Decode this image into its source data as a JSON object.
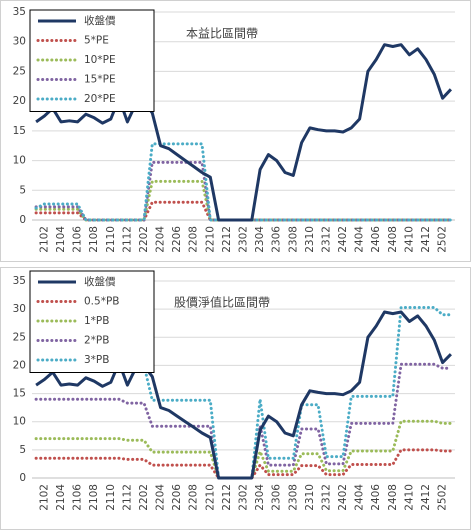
{
  "chart_data": [
    {
      "type": "line",
      "title": "本益比區間帶",
      "categories": [
        null,
        "2102",
        null,
        "2104",
        null,
        "2106",
        null,
        "2108",
        null,
        "2110",
        null,
        "2112",
        null,
        "2202",
        null,
        "2204",
        null,
        "2206",
        null,
        "2208",
        null,
        "2210",
        null,
        "2212",
        null,
        "2302",
        null,
        "2304",
        null,
        "2306",
        null,
        "2308",
        null,
        "2310",
        null,
        "2312",
        null,
        "2402",
        null,
        "2404",
        null,
        "2406",
        null,
        "2408",
        null,
        "2410",
        null,
        "2412",
        null,
        "2502",
        null
      ],
      "series": [
        {
          "name": "收盤價",
          "color": "#1f3864",
          "values": [
            16.5,
            17.5,
            18.8,
            16.5,
            16.7,
            16.5,
            17.8,
            17.2,
            16.3,
            17,
            20.5,
            16.5,
            19.5,
            20,
            18,
            12.5,
            12,
            11,
            10,
            9,
            8,
            7.2,
            0,
            0,
            0,
            0,
            0,
            8.5,
            11,
            10,
            8,
            7.5,
            13,
            15.5,
            15.2,
            15,
            15,
            14.8,
            15.5,
            17,
            25,
            27,
            29.5,
            29.2,
            29.5,
            27.8,
            28.8,
            27,
            24.5,
            20.5,
            22
          ]
        },
        {
          "name": "5*PE",
          "color": "#c0504d",
          "values": [
            1.2,
            1.2,
            1.2,
            1.2,
            1.2,
            1.2,
            0,
            0,
            0,
            0,
            0,
            0,
            0,
            0,
            3,
            3,
            3,
            3,
            3,
            3,
            3,
            0,
            0,
            0,
            0,
            0,
            0,
            0,
            0,
            0,
            0,
            0,
            0,
            0,
            0,
            0,
            0,
            0,
            0,
            0,
            0,
            0,
            0,
            0,
            0,
            0,
            0,
            0,
            0,
            0,
            0
          ]
        },
        {
          "name": "10*PE",
          "color": "#9bbb59",
          "values": [
            1.8,
            1.8,
            1.8,
            1.8,
            1.8,
            1.8,
            0,
            0,
            0,
            0,
            0,
            0,
            0,
            0,
            6.5,
            6.5,
            6.5,
            6.5,
            6.5,
            6.5,
            6.5,
            0,
            0,
            0,
            0,
            0,
            0,
            0,
            0,
            0,
            0,
            0,
            0,
            0,
            0,
            0,
            0,
            0,
            0,
            0,
            0,
            0,
            0,
            0,
            0,
            0,
            0,
            0,
            0,
            0,
            0
          ]
        },
        {
          "name": "15*PE",
          "color": "#8064a2",
          "values": [
            2.2,
            2.2,
            2.2,
            2.2,
            2.2,
            2.2,
            0,
            0,
            0,
            0,
            0,
            0,
            0,
            0,
            9.7,
            9.7,
            9.7,
            9.7,
            9.7,
            9.7,
            9.7,
            0,
            0,
            0,
            0,
            0,
            0,
            0,
            0,
            0,
            0,
            0,
            0,
            0,
            0,
            0,
            0,
            0,
            0,
            0,
            0,
            0,
            0,
            0,
            0,
            0,
            0,
            0,
            0,
            0,
            0
          ]
        },
        {
          "name": "20*PE",
          "color": "#4bacc6",
          "values": [
            2,
            2.7,
            2.7,
            2.7,
            2.7,
            2.7,
            0,
            0,
            0,
            0,
            0,
            0,
            0,
            0,
            12.8,
            12.8,
            12.8,
            12.8,
            12.8,
            12.8,
            12.8,
            0,
            0,
            0,
            0,
            0,
            0,
            0,
            0,
            0,
            0,
            0,
            0,
            0,
            0,
            0,
            0,
            0,
            0,
            0,
            0,
            0,
            0,
            0,
            0,
            0,
            0,
            0,
            0,
            0,
            0
          ]
        }
      ],
      "ylim": [
        0,
        35
      ],
      "yticks": [
        0,
        5,
        10,
        15,
        20,
        25,
        30,
        35
      ],
      "grid": true,
      "legend": "upper left"
    },
    {
      "type": "line",
      "title": "股價淨值比區間帶",
      "categories": [
        null,
        "2102",
        null,
        "2104",
        null,
        "2106",
        null,
        "2108",
        null,
        "2110",
        null,
        "2112",
        null,
        "2202",
        null,
        "2204",
        null,
        "2206",
        null,
        "2208",
        null,
        "2210",
        null,
        "2212",
        null,
        "2302",
        null,
        "2304",
        null,
        "2306",
        null,
        "2308",
        null,
        "2310",
        null,
        "2312",
        null,
        "2402",
        null,
        "2404",
        null,
        "2406",
        null,
        "2408",
        null,
        "2410",
        null,
        "2412",
        null,
        "2502",
        null
      ],
      "series": [
        {
          "name": "收盤價",
          "color": "#1f3864",
          "values": [
            16.5,
            17.5,
            18.8,
            16.5,
            16.7,
            16.5,
            17.8,
            17.2,
            16.3,
            17,
            20.5,
            16.5,
            19.5,
            20,
            18,
            12.5,
            12,
            11,
            10,
            9,
            8,
            7.2,
            0,
            0,
            0,
            0,
            0,
            8.5,
            11,
            10,
            8,
            7.5,
            13,
            15.5,
            15.2,
            15,
            15,
            14.8,
            15.5,
            17,
            25,
            27,
            29.5,
            29.2,
            29.5,
            27.8,
            28.8,
            27,
            24.5,
            20.5,
            22
          ]
        },
        {
          "name": "0.5*PB",
          "color": "#c0504d",
          "values": [
            3.5,
            3.5,
            3.5,
            3.5,
            3.5,
            3.5,
            3.5,
            3.5,
            3.5,
            3.5,
            3.5,
            3.3,
            3.3,
            3.3,
            2.3,
            2.3,
            2.3,
            2.3,
            2.3,
            2.3,
            2.3,
            2.3,
            0,
            0,
            0,
            0,
            0,
            2.3,
            0.6,
            0.6,
            0.6,
            0.6,
            2.2,
            2.2,
            2.2,
            0.6,
            0.6,
            0.6,
            2.4,
            2.4,
            2.4,
            2.4,
            2.4,
            2.4,
            5,
            5,
            5,
            5,
            5,
            4.8,
            4.8
          ]
        },
        {
          "name": "1*PB",
          "color": "#9bbb59",
          "values": [
            7,
            7,
            7,
            7,
            7,
            7,
            7,
            7,
            7,
            7,
            7,
            6.7,
            6.7,
            6.7,
            4.6,
            4.6,
            4.6,
            4.6,
            4.6,
            4.6,
            4.6,
            4.6,
            0,
            0,
            0,
            0,
            0,
            4.7,
            1.2,
            1.2,
            1.2,
            1.2,
            4.3,
            4.3,
            4.3,
            1.3,
            1.3,
            1.3,
            4.8,
            4.8,
            4.8,
            4.8,
            4.8,
            4.8,
            10.1,
            10.1,
            10.1,
            10.1,
            10.1,
            9.7,
            9.7
          ]
        },
        {
          "name": "2*PB",
          "color": "#8064a2",
          "values": [
            14,
            14,
            14,
            14,
            14,
            14,
            14,
            14,
            14,
            14,
            14,
            13.3,
            13.3,
            13.3,
            9.2,
            9.2,
            9.2,
            9.2,
            9.2,
            9.2,
            9.2,
            9.2,
            0,
            0,
            0,
            0,
            0,
            9.3,
            2.3,
            2.3,
            2.3,
            2.3,
            8.7,
            8.7,
            8.7,
            2.5,
            2.5,
            2.5,
            9.7,
            9.7,
            9.7,
            9.7,
            9.7,
            9.7,
            20.2,
            20.2,
            20.2,
            20.2,
            20.2,
            19.5,
            19.5
          ]
        },
        {
          "name": "3*PB",
          "color": "#4bacc6",
          "values": [
            21,
            21,
            21,
            21,
            21,
            21,
            21,
            21,
            21,
            21,
            21,
            20,
            20,
            20,
            13.8,
            13.8,
            13.8,
            13.8,
            13.8,
            13.8,
            13.8,
            13.8,
            0,
            0,
            0,
            0,
            0,
            14,
            3.5,
            3.5,
            3.5,
            3.5,
            13,
            13,
            13,
            3.8,
            3.8,
            3.8,
            14.5,
            14.5,
            14.5,
            14.5,
            14.5,
            14.5,
            30.3,
            30.3,
            30.3,
            30.3,
            30.3,
            29,
            29
          ]
        }
      ],
      "ylim": [
        0,
        35
      ],
      "yticks": [
        0,
        5,
        10,
        15,
        20,
        25,
        30,
        35
      ],
      "grid": true,
      "legend": "upper left"
    }
  ]
}
